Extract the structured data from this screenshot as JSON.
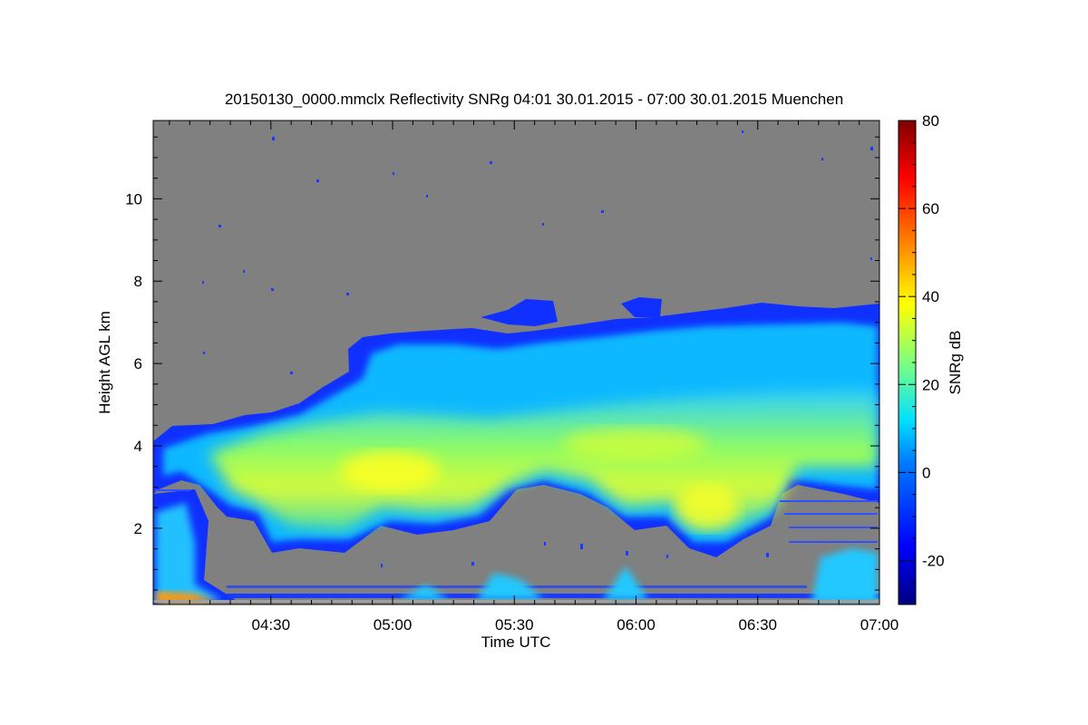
{
  "chart_data": {
    "type": "heatmap",
    "title": "20150130_0000.mmclx Reflectivity SNRg   04:01 30.01.2015 - 07:00 30.01.2015 Muenchen",
    "xlabel": "Time UTC",
    "ylabel": "Height AGL km",
    "colorbar_label": "SNRg dB",
    "x_range": [
      "04:01",
      "07:00"
    ],
    "x_ticks": [
      "04:30",
      "05:00",
      "05:30",
      "06:00",
      "06:30",
      "07:00"
    ],
    "y_range": [
      0.15,
      11.9
    ],
    "y_ticks": [
      2,
      4,
      6,
      8,
      10
    ],
    "colorbar_range": [
      -30,
      80
    ],
    "colorbar_ticks": [
      -20,
      0,
      20,
      40,
      60,
      80
    ],
    "colormap": "jet",
    "no_signal_color": "#808080",
    "features": {
      "cloud_top_km": [
        {
          "t": "04:01",
          "h": 4.3
        },
        {
          "t": "04:20",
          "h": 4.5
        },
        {
          "t": "04:40",
          "h": 5.4
        },
        {
          "t": "04:50",
          "h": 6.4
        },
        {
          "t": "05:10",
          "h": 6.6
        },
        {
          "t": "05:30",
          "h": 6.8
        },
        {
          "t": "06:00",
          "h": 7.0
        },
        {
          "t": "06:30",
          "h": 7.2
        },
        {
          "t": "07:00",
          "h": 7.3
        }
      ],
      "cloud_base_km": [
        {
          "t": "04:01",
          "h": 2.9
        },
        {
          "t": "04:20",
          "h": 2.6
        },
        {
          "t": "04:40",
          "h": 1.4
        },
        {
          "t": "05:00",
          "h": 1.8
        },
        {
          "t": "05:30",
          "h": 2.8
        },
        {
          "t": "06:00",
          "h": 1.9
        },
        {
          "t": "06:15",
          "h": 1.3
        },
        {
          "t": "06:35",
          "h": 2.5
        },
        {
          "t": "07:00",
          "h": 2.9
        }
      ],
      "max_signal_core_km": 3.3
    }
  }
}
